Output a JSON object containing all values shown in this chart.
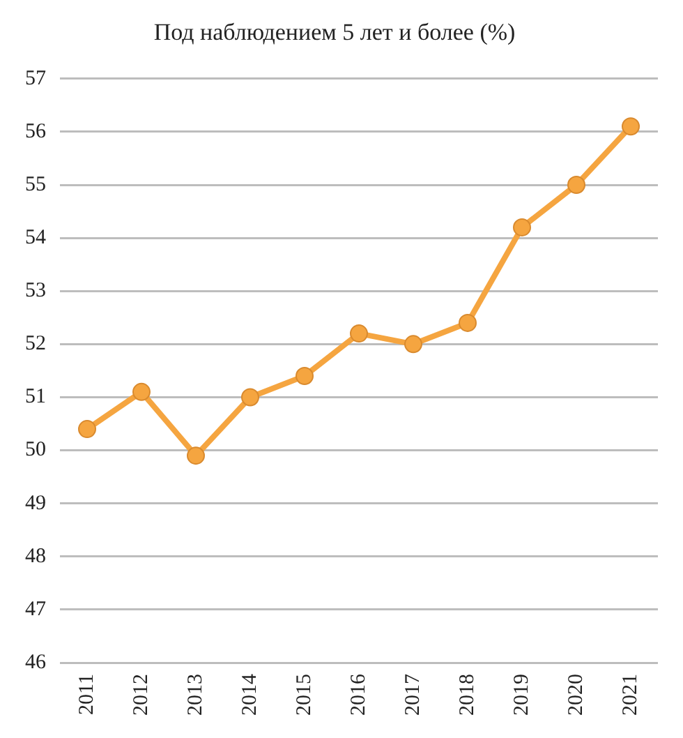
{
  "chart_data": {
    "type": "line",
    "title": "Под наблюдением 5 лет и более (%)",
    "categories": [
      "2011",
      "2012",
      "2013",
      "2014",
      "2015",
      "2016",
      "2017",
      "2018",
      "2019",
      "2020",
      "2021"
    ],
    "series": [
      {
        "color": "#f5a540",
        "values": [
          50.4,
          51.1,
          49.9,
          51.0,
          51.4,
          52.2,
          52.0,
          52.4,
          54.2,
          55.0,
          56.1
        ]
      }
    ],
    "ylim": [
      46,
      57
    ],
    "yticks": [
      46,
      47,
      48,
      49,
      50,
      51,
      52,
      53,
      54,
      55,
      56,
      57
    ],
    "grid": "y",
    "legend": false,
    "marker": "circle",
    "line_style": "solid"
  }
}
